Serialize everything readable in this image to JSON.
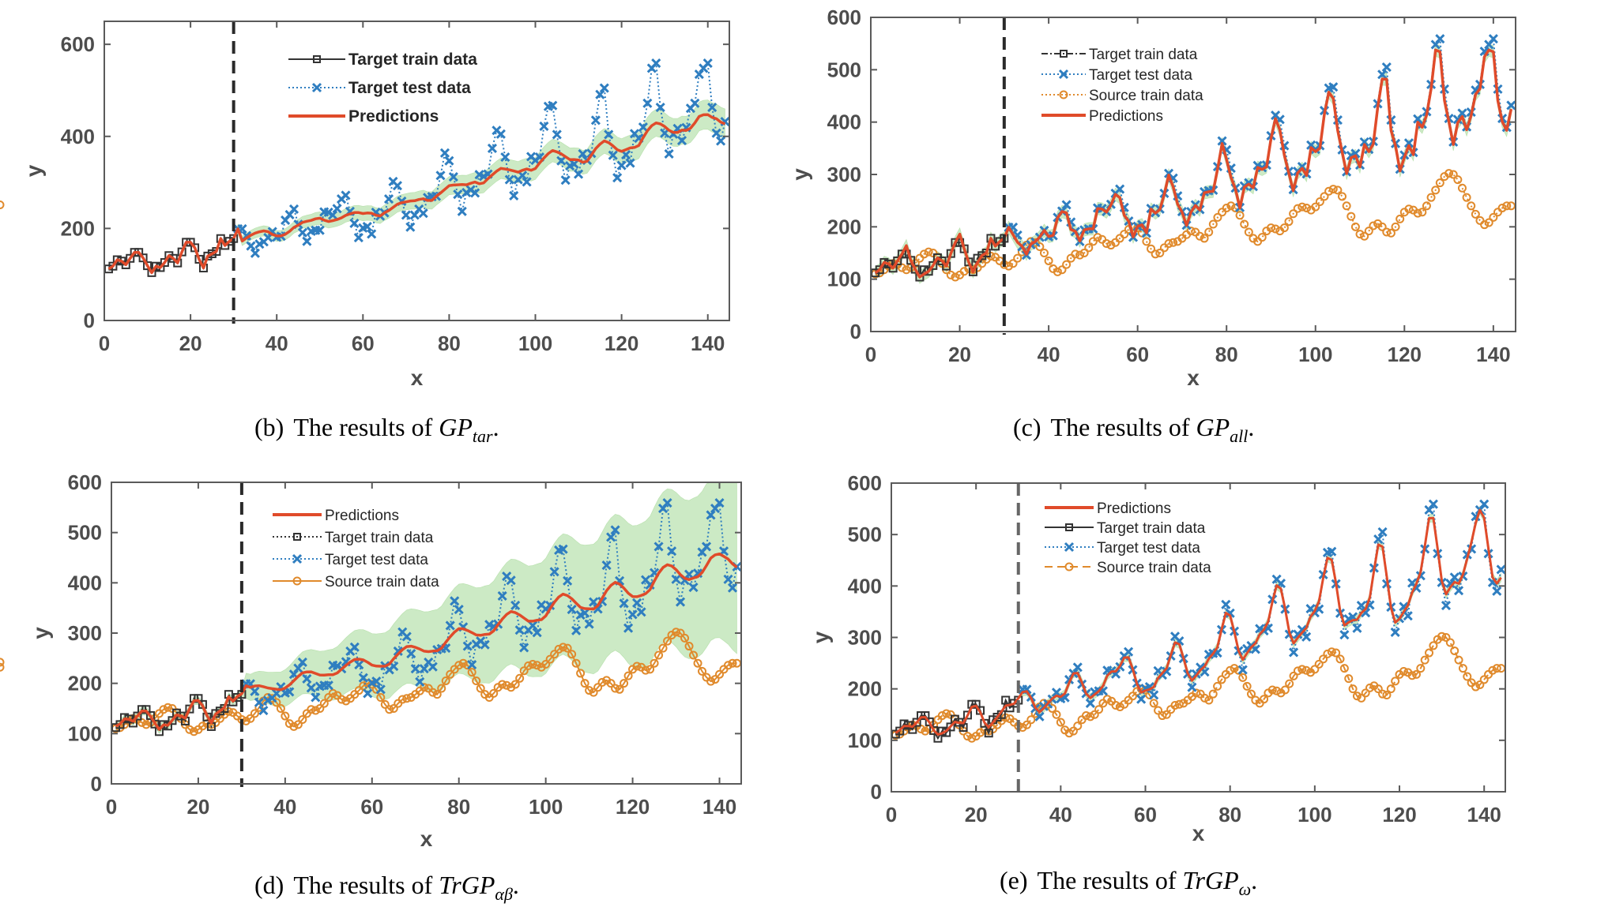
{
  "chart_data": [
    {
      "id": "b",
      "type": "line",
      "caption": {
        "prefix": "(b)",
        "text": "The results of ",
        "math": "GP",
        "sub": "tar",
        "suffix": "."
      },
      "xlabel": "x",
      "ylabel": "y",
      "xlim": [
        0,
        145
      ],
      "ylim": [
        0,
        650
      ],
      "xticks": [
        0,
        20,
        40,
        60,
        80,
        100,
        120,
        140
      ],
      "yticks": [
        0,
        200,
        400,
        600
      ],
      "split_x": 30,
      "legend": {
        "placement": "top-center",
        "entries": [
          "Target train data",
          "Target test data",
          "Predictions"
        ]
      },
      "band": "narrow",
      "has_source": false
    },
    {
      "id": "c",
      "type": "line",
      "caption": {
        "prefix": "(c)",
        "text": "The results of ",
        "math": "GP",
        "sub": "all",
        "suffix": "."
      },
      "xlabel": "x",
      "ylabel": "y",
      "xlim": [
        0,
        145
      ],
      "ylim": [
        0,
        600
      ],
      "xticks": [
        0,
        20,
        40,
        60,
        80,
        100,
        120,
        140
      ],
      "yticks": [
        0,
        100,
        200,
        300,
        400,
        500,
        600
      ],
      "split_x": 30,
      "legend": {
        "placement": "top-center",
        "entries": [
          "Target train data",
          "Target test data",
          "Source train data",
          "Predictions"
        ]
      },
      "band": "tight",
      "has_source": true
    },
    {
      "id": "d",
      "type": "line",
      "caption": {
        "prefix": "(d)",
        "text": "The results of ",
        "math": "TrGP",
        "sub": "αβ",
        "suffix": "."
      },
      "xlabel": "x",
      "ylabel": "y",
      "xlim": [
        0,
        145
      ],
      "ylim": [
        0,
        600
      ],
      "xticks": [
        0,
        20,
        40,
        60,
        80,
        100,
        120,
        140
      ],
      "yticks": [
        0,
        100,
        200,
        300,
        400,
        500,
        600
      ],
      "split_x": 30,
      "legend": {
        "placement": "top-center",
        "entries": [
          "Predictions",
          "Target train data",
          "Target test data",
          "Source train data"
        ]
      },
      "band": "wide",
      "has_source": true
    },
    {
      "id": "e",
      "type": "line",
      "caption": {
        "prefix": "(e)",
        "text": "The results of ",
        "math": "TrGP",
        "sub": "ω",
        "suffix": "."
      },
      "xlabel": "x",
      "ylabel": "y",
      "xlim": [
        0,
        145
      ],
      "ylim": [
        0,
        600
      ],
      "xticks": [
        0,
        20,
        40,
        60,
        80,
        100,
        120,
        140
      ],
      "yticks": [
        0,
        100,
        200,
        300,
        400,
        500,
        600
      ],
      "split_x": 30,
      "legend": {
        "placement": "top-center",
        "entries": [
          "Predictions",
          "Target train data",
          "Target test data",
          "Source train data"
        ]
      },
      "band": "tight",
      "has_source": true
    }
  ],
  "series": {
    "target": [
      112,
      118,
      132,
      129,
      121,
      135,
      148,
      148,
      136,
      119,
      104,
      118,
      115,
      126,
      141,
      135,
      125,
      149,
      170,
      170,
      158,
      133,
      114,
      140,
      145,
      150,
      178,
      163,
      172,
      178,
      199,
      199,
      184,
      162,
      146,
      166,
      171,
      180,
      193,
      181,
      183,
      218,
      230,
      242,
      209,
      191,
      172,
      194,
      196,
      196,
      236,
      235,
      229,
      243,
      264,
      272,
      237,
      211,
      180,
      201,
      204,
      188,
      235,
      227,
      234,
      264,
      302,
      293,
      259,
      229,
      203,
      229,
      242,
      233,
      267,
      269,
      270,
      315,
      364,
      347,
      312,
      274,
      237,
      278,
      284,
      277,
      317,
      313,
      318,
      374,
      413,
      405,
      355,
      306,
      271,
      306,
      315,
      301,
      356,
      348,
      355,
      422,
      465,
      467,
      404,
      347,
      305,
      336,
      340,
      318,
      362,
      348,
      363,
      435,
      491,
      505,
      404,
      359,
      310,
      337,
      360,
      342,
      406,
      396,
      420,
      472,
      548,
      559,
      463,
      407,
      362,
      405,
      417,
      391,
      419,
      461,
      472,
      535,
      548,
      559,
      463,
      407,
      390,
      432
    ],
    "source": [
      110,
      112,
      118,
      125,
      130,
      128,
      122,
      118,
      122,
      130,
      140,
      148,
      152,
      150,
      142,
      130,
      118,
      108,
      104,
      108,
      115,
      120,
      118,
      122,
      130,
      138,
      144,
      142,
      135,
      128,
      125,
      130,
      140,
      152,
      165,
      172,
      170,
      162,
      150,
      135,
      120,
      114,
      118,
      128,
      140,
      148,
      146,
      150,
      160,
      172,
      180,
      176,
      168,
      165,
      170,
      178,
      186,
      195,
      200,
      198,
      188,
      172,
      158,
      148,
      150,
      160,
      168,
      170,
      172,
      178,
      185,
      192,
      190,
      182,
      178,
      190,
      205,
      218,
      228,
      236,
      240,
      236,
      222,
      205,
      190,
      178,
      172,
      180,
      192,
      198,
      196,
      192,
      198,
      210,
      225,
      235,
      238,
      236,
      232,
      238,
      248,
      258,
      268,
      272,
      270,
      258,
      240,
      220,
      200,
      186,
      182,
      192,
      202,
      206,
      200,
      190,
      188,
      200,
      215,
      228,
      234,
      232,
      226,
      228,
      240,
      256,
      270,
      284,
      296,
      302,
      300,
      290,
      274,
      256,
      240,
      224,
      212,
      204,
      208,
      218,
      228,
      236,
      240,
      240,
      242
    ],
    "colors": {
      "target_train": "#333333",
      "target_test": "#2f7ec0",
      "source_train": "#e08a2c",
      "predictions": "#e04b2a",
      "band": "#8fd07e",
      "axis": "#5a5a5a",
      "split_line": "#2a2a2a"
    }
  }
}
